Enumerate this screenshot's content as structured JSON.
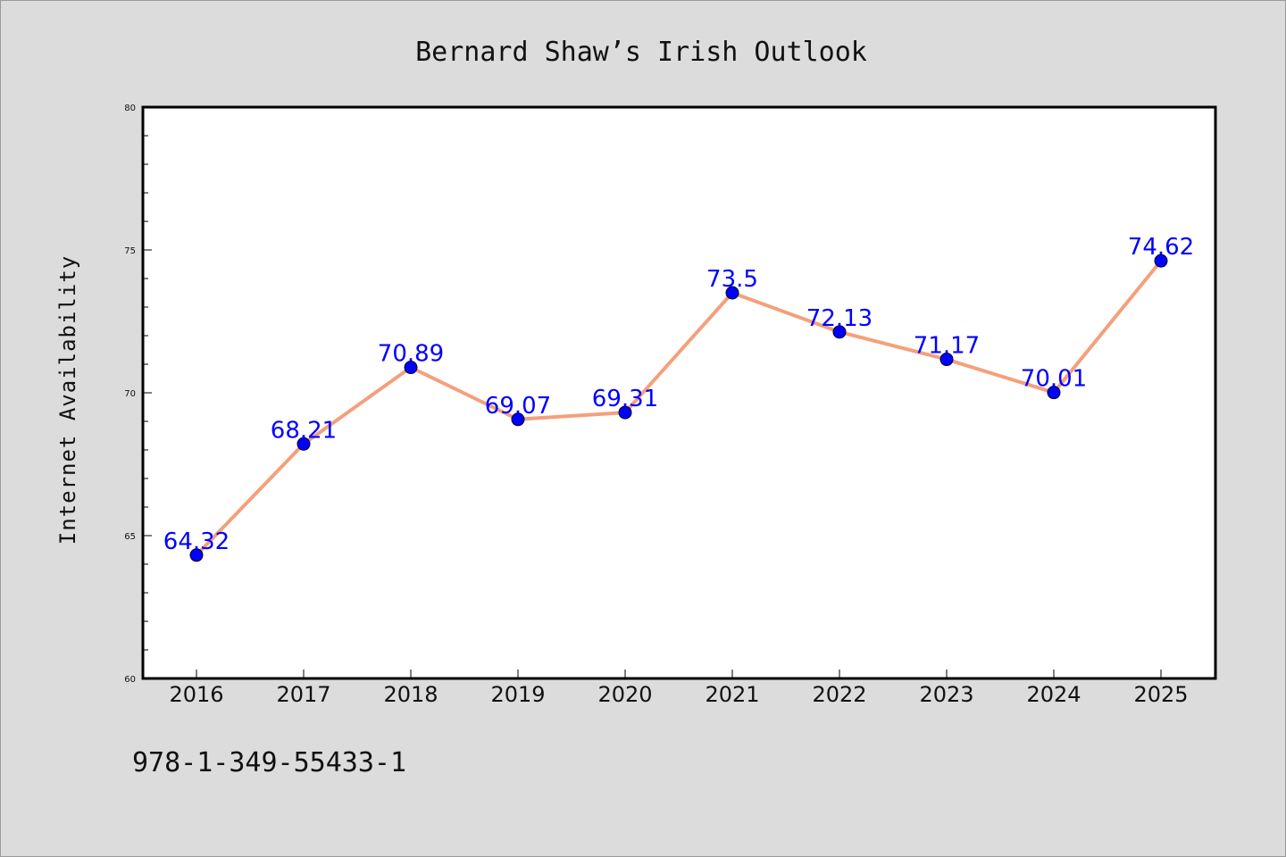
{
  "chart_data": {
    "type": "line",
    "title": "Bernard Shaw’s Irish Outlook",
    "xlabel": "",
    "ylabel": "Internet Availability",
    "categories": [
      "2016",
      "2017",
      "2018",
      "2019",
      "2020",
      "2021",
      "2022",
      "2023",
      "2024",
      "2025"
    ],
    "series": [
      {
        "values": [
          64.32,
          68.21,
          70.89,
          69.07,
          69.31,
          73.5,
          72.13,
          71.17,
          70.01,
          74.62
        ],
        "data_labels": [
          "64.32",
          "68.21",
          "70.89",
          "69.07",
          "69.31",
          "73.5",
          "72.13",
          "71.17",
          "70.01",
          "74.62"
        ],
        "line_color": "#f4a07c",
        "marker_color": "#0000ff"
      }
    ],
    "ylim": [
      60,
      80
    ],
    "yticks": [
      "60",
      "65",
      "70",
      "75",
      "80"
    ],
    "grid": false,
    "legend": "none"
  },
  "footer": {
    "isbn": "978-1-349-55433-1"
  },
  "colors": {
    "background": "#dcdcdc",
    "plot_background": "#ffffff",
    "line": "#f4a07c",
    "marker": "#0000ff",
    "data_label": "#0000ff"
  }
}
